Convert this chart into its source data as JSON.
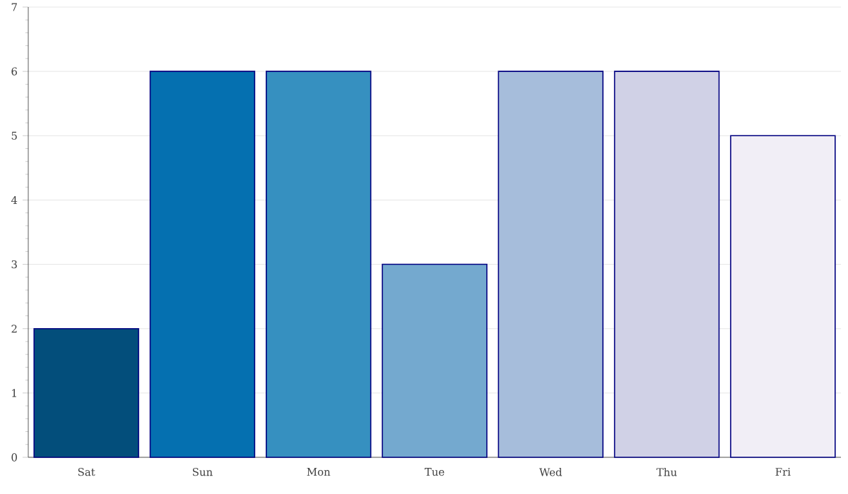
{
  "chart_data": {
    "type": "bar",
    "categories": [
      "Sat",
      "Sun",
      "Mon",
      "Tue",
      "Wed",
      "Thu",
      "Fri"
    ],
    "values": [
      2,
      6,
      6,
      3,
      6,
      6,
      5
    ],
    "colors": [
      "#034e7b",
      "#0570b0",
      "#3690c0",
      "#74a9cf",
      "#a6bddb",
      "#d0d1e6",
      "#f1eef6"
    ],
    "ylim": [
      0,
      7
    ],
    "yticks": [
      0,
      1,
      2,
      3,
      4,
      5,
      6,
      7
    ],
    "grid": "y"
  }
}
